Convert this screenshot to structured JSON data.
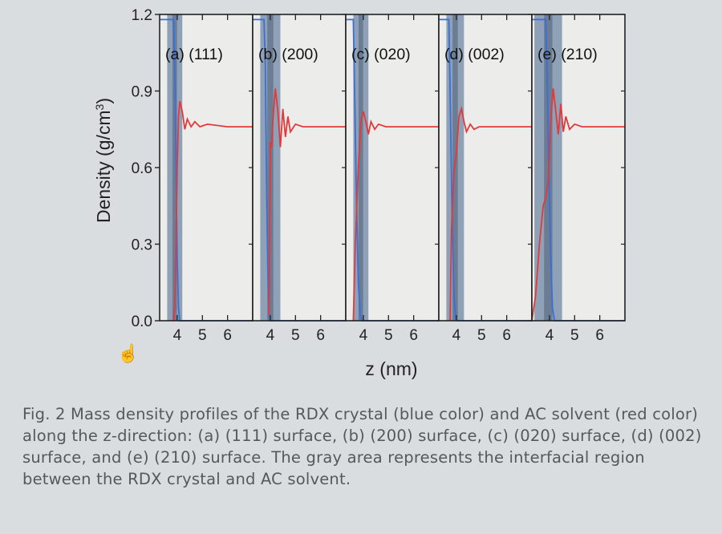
{
  "chart_data": {
    "type": "line",
    "ylabel": "Density (g/cm",
    "ylabel_sup": "3",
    "ylabel_close": ")",
    "xlabel": "z (nm)",
    "ylim": [
      0,
      1.2
    ],
    "yticks": [
      "0.0",
      "0.3",
      "0.6",
      "0.9",
      "1.2"
    ],
    "xlim": [
      3.3,
      7.0
    ],
    "xticks": [
      "4",
      "5",
      "6"
    ],
    "colors": {
      "crystal": "#3a6fd8",
      "solvent": "#e23a3a",
      "interface": "#7f93ad",
      "interface_dark": "#4e5f77"
    },
    "panels": [
      {
        "label": "(a) (111)",
        "interface": [
          3.6,
          4.2
        ],
        "crystal": [
          [
            3.3,
            1.18
          ],
          [
            3.85,
            1.18
          ],
          [
            3.9,
            1.0
          ],
          [
            3.95,
            0.6
          ],
          [
            4.0,
            0.25
          ],
          [
            4.05,
            0.05
          ],
          [
            4.1,
            0.0
          ],
          [
            7.0,
            0.0
          ]
        ],
        "solvent": [
          [
            3.85,
            0.0
          ],
          [
            3.9,
            0.05
          ],
          [
            3.95,
            0.3
          ],
          [
            4.0,
            0.6
          ],
          [
            4.05,
            0.8
          ],
          [
            4.1,
            0.86
          ],
          [
            4.2,
            0.82
          ],
          [
            4.3,
            0.75
          ],
          [
            4.4,
            0.79
          ],
          [
            4.55,
            0.76
          ],
          [
            4.7,
            0.78
          ],
          [
            4.9,
            0.76
          ],
          [
            5.2,
            0.77
          ],
          [
            6.0,
            0.76
          ],
          [
            7.0,
            0.76
          ]
        ]
      },
      {
        "label": "(b) (200)",
        "interface": [
          3.6,
          4.4
        ],
        "crystal": [
          [
            3.3,
            1.18
          ],
          [
            3.75,
            1.18
          ],
          [
            3.8,
            1.0
          ],
          [
            3.85,
            0.55
          ],
          [
            3.9,
            0.2
          ],
          [
            3.95,
            0.03
          ],
          [
            4.0,
            0.0
          ],
          [
            7.0,
            0.0
          ]
        ],
        "solvent": [
          [
            3.95,
            0.02
          ],
          [
            4.0,
            0.7
          ],
          [
            4.05,
            0.68
          ],
          [
            4.1,
            0.78
          ],
          [
            4.2,
            0.91
          ],
          [
            4.3,
            0.82
          ],
          [
            4.4,
            0.68
          ],
          [
            4.5,
            0.83
          ],
          [
            4.6,
            0.72
          ],
          [
            4.7,
            0.8
          ],
          [
            4.8,
            0.74
          ],
          [
            5.0,
            0.77
          ],
          [
            5.3,
            0.76
          ],
          [
            6.0,
            0.76
          ],
          [
            7.0,
            0.76
          ]
        ]
      },
      {
        "label": "(c) (020)",
        "interface": [
          3.6,
          4.2
        ],
        "crystal": [
          [
            3.3,
            1.18
          ],
          [
            3.6,
            1.18
          ],
          [
            3.65,
            0.9
          ],
          [
            3.72,
            0.5
          ],
          [
            3.8,
            0.15
          ],
          [
            3.88,
            0.02
          ],
          [
            3.95,
            0.0
          ],
          [
            7.0,
            0.0
          ]
        ],
        "solvent": [
          [
            3.6,
            0.0
          ],
          [
            3.68,
            0.3
          ],
          [
            3.8,
            0.6
          ],
          [
            3.9,
            0.78
          ],
          [
            4.0,
            0.82
          ],
          [
            4.1,
            0.78
          ],
          [
            4.2,
            0.73
          ],
          [
            4.3,
            0.78
          ],
          [
            4.45,
            0.75
          ],
          [
            4.6,
            0.77
          ],
          [
            4.9,
            0.76
          ],
          [
            6.0,
            0.76
          ],
          [
            7.0,
            0.76
          ]
        ]
      },
      {
        "label": "(d) (002)",
        "interface": [
          3.6,
          4.3
        ],
        "crystal": [
          [
            3.3,
            1.18
          ],
          [
            3.7,
            1.18
          ],
          [
            3.75,
            0.9
          ],
          [
            3.82,
            0.45
          ],
          [
            3.9,
            0.1
          ],
          [
            3.97,
            0.01
          ],
          [
            4.05,
            0.0
          ],
          [
            7.0,
            0.0
          ]
        ],
        "solvent": [
          [
            3.75,
            0.0
          ],
          [
            3.8,
            0.35
          ],
          [
            3.9,
            0.58
          ],
          [
            4.0,
            0.66
          ],
          [
            4.1,
            0.8
          ],
          [
            4.2,
            0.83
          ],
          [
            4.3,
            0.78
          ],
          [
            4.4,
            0.74
          ],
          [
            4.55,
            0.77
          ],
          [
            4.7,
            0.75
          ],
          [
            4.9,
            0.76
          ],
          [
            6.0,
            0.76
          ],
          [
            7.0,
            0.76
          ]
        ]
      },
      {
        "label": "(e) (210)",
        "interface": [
          3.4,
          4.5
        ],
        "crystal": [
          [
            3.3,
            1.18
          ],
          [
            3.85,
            1.18
          ],
          [
            3.9,
            1.0
          ],
          [
            3.97,
            0.6
          ],
          [
            4.05,
            0.25
          ],
          [
            4.12,
            0.05
          ],
          [
            4.2,
            0.0
          ],
          [
            7.0,
            0.0
          ]
        ],
        "solvent": [
          [
            3.3,
            0.0
          ],
          [
            3.45,
            0.1
          ],
          [
            3.6,
            0.3
          ],
          [
            3.75,
            0.45
          ],
          [
            3.85,
            0.48
          ],
          [
            3.95,
            0.55
          ],
          [
            4.05,
            0.78
          ],
          [
            4.15,
            0.91
          ],
          [
            4.25,
            0.82
          ],
          [
            4.35,
            0.73
          ],
          [
            4.45,
            0.85
          ],
          [
            4.55,
            0.74
          ],
          [
            4.65,
            0.8
          ],
          [
            4.8,
            0.75
          ],
          [
            5.0,
            0.77
          ],
          [
            5.3,
            0.76
          ],
          [
            6.0,
            0.76
          ],
          [
            7.0,
            0.76
          ]
        ]
      }
    ]
  },
  "caption": {
    "label": "Fig. 2",
    "text": "Mass density profiles of the RDX crystal (blue color) and AC solvent (red color) along the z-direction: (a) (111) surface, (b) (200) surface, (c) (020) surface, (d) (002) surface, and (e) (210) surface. The gray area represents the interfacial region between the RDX crystal and AC solvent."
  }
}
